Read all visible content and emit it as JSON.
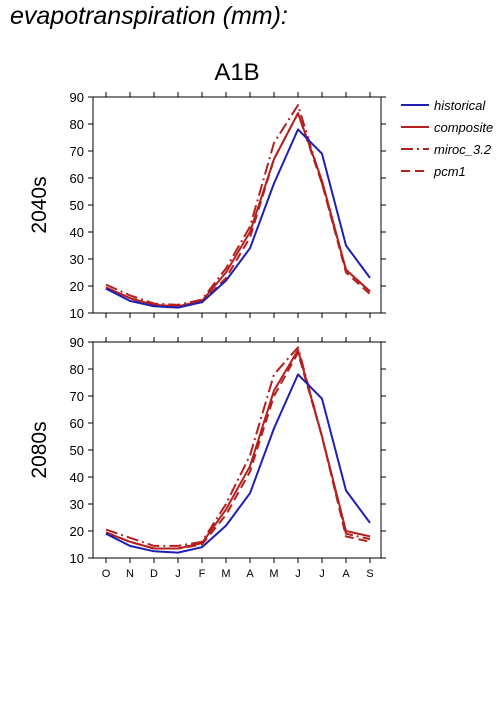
{
  "page": {
    "title": "evapotranspiration (mm):"
  },
  "chart_data": {
    "type": "line",
    "scenario": "A1B",
    "x": [
      "O",
      "N",
      "D",
      "J",
      "F",
      "M",
      "A",
      "M",
      "J",
      "J",
      "A",
      "S"
    ],
    "ylim": [
      10,
      90
    ],
    "yticks": [
      10,
      20,
      30,
      40,
      50,
      60,
      70,
      80,
      90
    ],
    "colors": {
      "historical": "#1f1fb4",
      "future": "#b41f1f"
    },
    "legend": {
      "placement": "right",
      "entries": [
        {
          "name": "historical",
          "style": "solid",
          "color": "#1f1fb4"
        },
        {
          "name": "composite",
          "style": "solid",
          "color": "#b41f1f"
        },
        {
          "name": "miroc_3.2",
          "style": "dashdot",
          "color": "#b41f1f"
        },
        {
          "name": "pcm1",
          "style": "dashed",
          "color": "#b41f1f"
        }
      ]
    },
    "panels": [
      {
        "row_label": "2040s",
        "series": [
          {
            "name": "historical",
            "values": [
              19,
              14.5,
              12.5,
              12,
              14,
              22,
              34,
              58,
              78,
              69,
              35,
              23
            ]
          },
          {
            "name": "composite",
            "values": [
              19.5,
              15.5,
              13,
              12.5,
              14.5,
              25,
              40,
              67,
              84,
              59,
              26,
              18
            ]
          },
          {
            "name": "miroc_3.2",
            "values": [
              20.5,
              16.5,
              13.5,
              13,
              15,
              26.5,
              42,
              73,
              87,
              58,
              26,
              18
            ]
          },
          {
            "name": "pcm1",
            "values": [
              19.5,
              15.5,
              12.5,
              12.5,
              14,
              23,
              38,
              67,
              84,
              58,
              25,
              17
            ]
          }
        ]
      },
      {
        "row_label": "2080s",
        "series": [
          {
            "name": "historical",
            "values": [
              19,
              14.5,
              12.5,
              12,
              14,
              22,
              34,
              58,
              78,
              69,
              35,
              23
            ]
          },
          {
            "name": "composite",
            "values": [
              19.5,
              16,
              13.5,
              13.5,
              15.5,
              28,
              44,
              72,
              87,
              55,
              20,
              18
            ]
          },
          {
            "name": "miroc_3.2",
            "values": [
              20.5,
              17.5,
              14.5,
              14.5,
              16,
              30,
              48,
              78,
              88,
              55,
              19,
              17
            ]
          },
          {
            "name": "pcm1",
            "values": [
              19.5,
              16,
              13.5,
              13.5,
              15,
              26,
              42,
              70,
              86,
              55,
              18,
              16
            ]
          }
        ]
      }
    ]
  }
}
